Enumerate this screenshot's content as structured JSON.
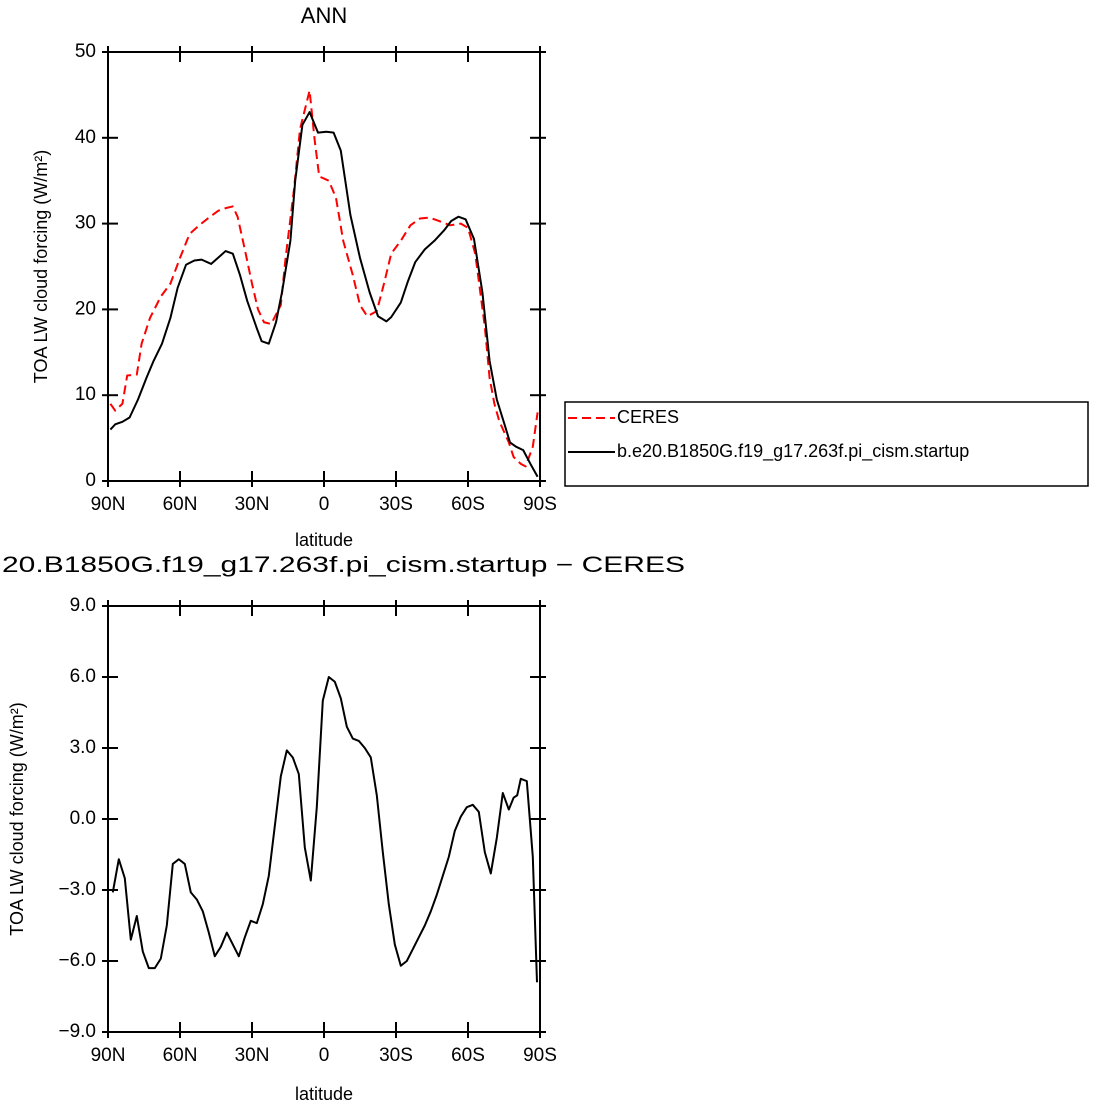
{
  "chart_data": [
    {
      "type": "line",
      "title": "ANN",
      "xlabel": "latitude",
      "ylabel": "TOA LW cloud forcing (W/m²)",
      "xlim": [
        90,
        -90
      ],
      "xticks": [
        {
          "value": 90,
          "label": "90N"
        },
        {
          "value": 60,
          "label": "60N"
        },
        {
          "value": 30,
          "label": "30N"
        },
        0,
        {
          "value": -30,
          "label": "30S"
        },
        {
          "value": -60,
          "label": "60S"
        },
        {
          "value": -90,
          "label": "90S"
        }
      ],
      "ylim": [
        0,
        50
      ],
      "yticks": [
        0,
        10,
        20,
        30,
        40,
        50
      ],
      "legend": "right",
      "series": [
        {
          "name": "CERES",
          "color": "#ff0000",
          "dashed": true,
          "x": [
            89,
            87,
            84,
            82,
            78,
            76,
            72.5,
            68,
            64,
            60,
            56,
            52,
            47.5,
            44,
            41,
            38,
            36,
            33,
            30,
            27.5,
            25,
            22,
            18,
            16,
            12.5,
            10,
            6,
            4,
            2,
            -2,
            -5,
            -8,
            -12,
            -15,
            -18,
            -22,
            -25,
            -28,
            -32,
            -36,
            -40,
            -44,
            -48,
            -52.5,
            -57,
            -60,
            -63,
            -67,
            -69,
            -71,
            -73,
            -77,
            -79,
            -82,
            -84,
            -87,
            -89
          ],
          "values": [
            9,
            8.2,
            9,
            12.3,
            12.4,
            16,
            19,
            21.5,
            23,
            26,
            28.8,
            29.8,
            30.8,
            31.5,
            31.8,
            32,
            30.8,
            27,
            23,
            20,
            18.5,
            18.3,
            20.5,
            26,
            34,
            41,
            45.5,
            40,
            35.5,
            35,
            33,
            28,
            24,
            20.5,
            19.2,
            19.8,
            23,
            26.5,
            28,
            29.8,
            30.6,
            30.7,
            30.3,
            29.8,
            30,
            29.5,
            26.5,
            18,
            12,
            9,
            7,
            4.5,
            2.8,
            2,
            1.7,
            4,
            8
          ]
        },
        {
          "name": "b.e20.B1850G.f19_g17.263f.pi_cism.startup",
          "color": "#000000",
          "dashed": false,
          "x": [
            89,
            87,
            84,
            81,
            77.5,
            74,
            71,
            67.5,
            64,
            61,
            57.5,
            54,
            51,
            47,
            43,
            41,
            38,
            35,
            32,
            28,
            26,
            23,
            20,
            17.5,
            14,
            12,
            9,
            6,
            2.5,
            -1,
            -4,
            -7,
            -11,
            -15,
            -19,
            -22.5,
            -26,
            -28,
            -32,
            -35,
            -38,
            -42,
            -46,
            -50,
            -53,
            -56,
            -59,
            -62.5,
            -66,
            -69,
            -72,
            -75,
            -77.5,
            -80,
            -83,
            -86,
            -89
          ],
          "values": [
            6,
            6.6,
            6.9,
            7.4,
            9.5,
            12,
            14,
            16,
            19,
            22.5,
            25.2,
            25.7,
            25.8,
            25.3,
            26.3,
            26.8,
            26.5,
            24,
            21,
            17.8,
            16.3,
            16,
            18.5,
            22,
            28,
            35,
            41.5,
            43,
            40.6,
            40.7,
            40.6,
            38.5,
            31,
            26,
            22,
            19.2,
            18.6,
            19.1,
            20.8,
            23.3,
            25.5,
            27,
            28,
            29.2,
            30.3,
            30.8,
            30.5,
            28.2,
            22,
            14,
            9.5,
            6.8,
            4.5,
            4,
            3.6,
            2,
            0.5
          ]
        }
      ]
    },
    {
      "type": "line",
      "title": "20.B1850G.f19_g17.263f.pi_cism.startup − CERES",
      "xlabel": "latitude",
      "ylabel": "TOA LW cloud forcing (W/m²)",
      "xlim": [
        90,
        -90
      ],
      "xticks": [
        {
          "value": 90,
          "label": "90N"
        },
        {
          "value": 60,
          "label": "60N"
        },
        {
          "value": 30,
          "label": "30N"
        },
        0,
        {
          "value": -30,
          "label": "30S"
        },
        {
          "value": -60,
          "label": "60S"
        },
        {
          "value": -90,
          "label": "90S"
        }
      ],
      "ylim": [
        -9,
        9
      ],
      "yticks": [
        {
          "value": -9,
          "label": "−9.0"
        },
        {
          "value": -6,
          "label": "−6.0"
        },
        {
          "value": -3,
          "label": "−3.0"
        },
        {
          "value": 0,
          "label": "0.0"
        },
        {
          "value": 3,
          "label": "3.0"
        },
        {
          "value": 6,
          "label": "6.0"
        },
        {
          "value": 9,
          "label": "9.0"
        }
      ],
      "series": [
        {
          "color": "#000000",
          "dashed": false,
          "x": [
            88,
            85.5,
            83,
            80.5,
            78,
            75.5,
            73,
            70.5,
            68,
            65.5,
            63,
            60.5,
            58,
            55.5,
            53,
            50.5,
            48,
            45.5,
            43,
            40.5,
            38,
            35.5,
            33,
            30.5,
            28,
            25.5,
            23,
            20.5,
            18,
            15.5,
            13,
            10.5,
            8,
            5.5,
            3,
            0.5,
            -2,
            -4.5,
            -7,
            -9.5,
            -12,
            -14.5,
            -17,
            -19.5,
            -22,
            -24.5,
            -27,
            -29.5,
            -32,
            -34.5,
            -37,
            -39.5,
            -42,
            -44.5,
            -47,
            -49.5,
            -52,
            -54.5,
            -57,
            -59.5,
            -62,
            -64.5,
            -67,
            -69.5,
            -72,
            -74.5,
            -77,
            -79,
            -80.5,
            -82,
            -84.5,
            -87,
            -88.75
          ],
          "values": [
            -3.1,
            -1.7,
            -2.5,
            -5.1,
            -4.1,
            -5.6,
            -6.3,
            -6.3,
            -5.9,
            -4.5,
            -1.9,
            -1.7,
            -1.9,
            -3.1,
            -3.4,
            -3.9,
            -4.8,
            -5.8,
            -5.4,
            -4.8,
            -5.3,
            -5.8,
            -5.0,
            -4.3,
            -4.4,
            -3.6,
            -2.4,
            -0.3,
            1.8,
            2.9,
            2.6,
            1.9,
            -1.2,
            -2.6,
            0.5,
            5.0,
            6.0,
            5.8,
            5.1,
            3.9,
            3.4,
            3.3,
            3.0,
            2.6,
            1.0,
            -1.4,
            -3.6,
            -5.3,
            -6.2,
            -6.0,
            -5.5,
            -5.0,
            -4.5,
            -3.9,
            -3.2,
            -2.4,
            -1.6,
            -0.5,
            0.1,
            0.5,
            0.6,
            0.3,
            -1.4,
            -2.3,
            -0.8,
            1.1,
            0.4,
            0.9,
            1.0,
            1.7,
            1.6,
            -1.6,
            -6.9
          ]
        }
      ]
    }
  ]
}
